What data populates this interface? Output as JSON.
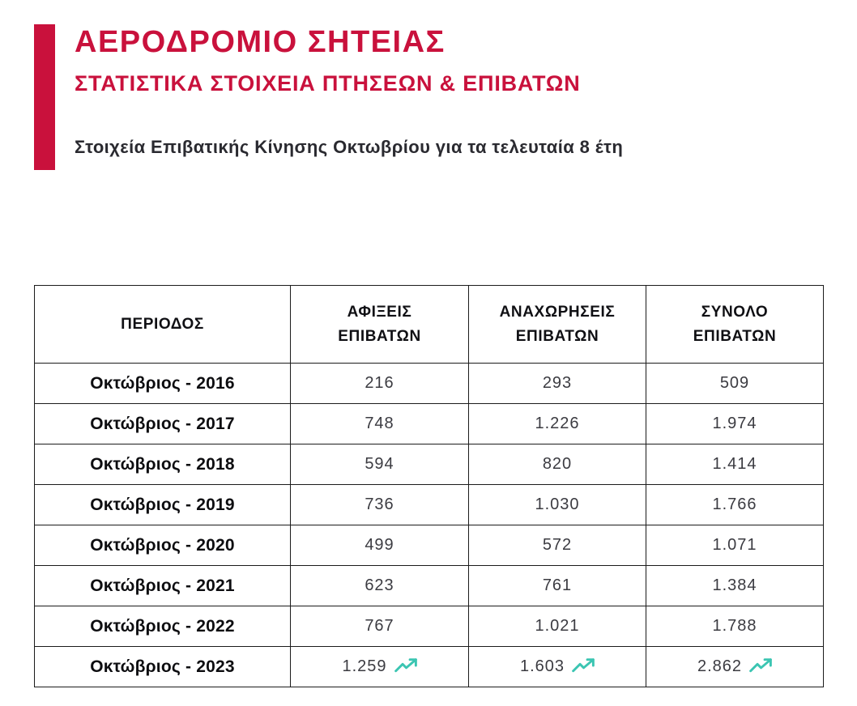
{
  "header": {
    "title": "ΑΕΡΟΔΡΟΜΙΟ ΣΗΤΕΙΑΣ",
    "subtitle": "ΣΤΑΤΙΣΤΙΚΑ ΣΤΟΙΧΕΙΑ ΠΤΗΣΕΩΝ & ΕΠΙΒΑΤΩΝ",
    "description": "Στοιχεία Επιβατικής Κίνησης Οκτωβρίου για τα τελευταία 8 έτη"
  },
  "colors": {
    "accent": "#C9113C",
    "trend_arrow": "#3BC5B2"
  },
  "table": {
    "columns": [
      "ΠΕΡΙΟΔΟΣ",
      "ΑΦΙΞΕΙΣ\nΕΠΙΒΑΤΩΝ",
      "ΑΝΑΧΩΡΗΣΕΙΣ\nΕΠΙΒΑΤΩΝ",
      "ΣΥΝΟΛΟ\nΕΠΙΒΑΤΩΝ"
    ],
    "rows": [
      {
        "period": "Οκτώβριος - 2016",
        "arrivals": "216",
        "departures": "293",
        "total": "509",
        "trend": false
      },
      {
        "period": "Οκτώβριος - 2017",
        "arrivals": "748",
        "departures": "1.226",
        "total": "1.974",
        "trend": false
      },
      {
        "period": "Οκτώβριος - 2018",
        "arrivals": "594",
        "departures": "820",
        "total": "1.414",
        "trend": false
      },
      {
        "period": "Οκτώβριος - 2019",
        "arrivals": "736",
        "departures": "1.030",
        "total": "1.766",
        "trend": false
      },
      {
        "period": "Οκτώβριος - 2020",
        "arrivals": "499",
        "departures": "572",
        "total": "1.071",
        "trend": false
      },
      {
        "period": "Οκτώβριος - 2021",
        "arrivals": "623",
        "departures": "761",
        "total": "1.384",
        "trend": false
      },
      {
        "period": "Οκτώβριος - 2022",
        "arrivals": "767",
        "departures": "1.021",
        "total": "1.788",
        "trend": false
      },
      {
        "period": "Οκτώβριος - 2023",
        "arrivals": "1.259",
        "departures": "1.603",
        "total": "2.862",
        "trend": true
      }
    ]
  },
  "chart_data": {
    "type": "table",
    "title": "Στοιχεία Επιβατικής Κίνησης Οκτωβρίου για τα τελευταία 8 έτη",
    "categories": [
      "Οκτώβριος - 2016",
      "Οκτώβριος - 2017",
      "Οκτώβριος - 2018",
      "Οκτώβριος - 2019",
      "Οκτώβριος - 2020",
      "Οκτώβριος - 2021",
      "Οκτώβριος - 2022",
      "Οκτώβριος - 2023"
    ],
    "series": [
      {
        "name": "ΑΦΙΞΕΙΣ ΕΠΙΒΑΤΩΝ",
        "values": [
          216,
          748,
          594,
          736,
          499,
          623,
          767,
          1259
        ]
      },
      {
        "name": "ΑΝΑΧΩΡΗΣΕΙΣ ΕΠΙΒΑΤΩΝ",
        "values": [
          293,
          1226,
          820,
          1030,
          572,
          761,
          1021,
          1603
        ]
      },
      {
        "name": "ΣΥΝΟΛΟ ΕΠΙΒΑΤΩΝ",
        "values": [
          509,
          1974,
          1414,
          1766,
          1071,
          1384,
          1788,
          2862
        ]
      }
    ],
    "annotations": [
      "upward trend arrows shown on 2023 row values"
    ]
  }
}
